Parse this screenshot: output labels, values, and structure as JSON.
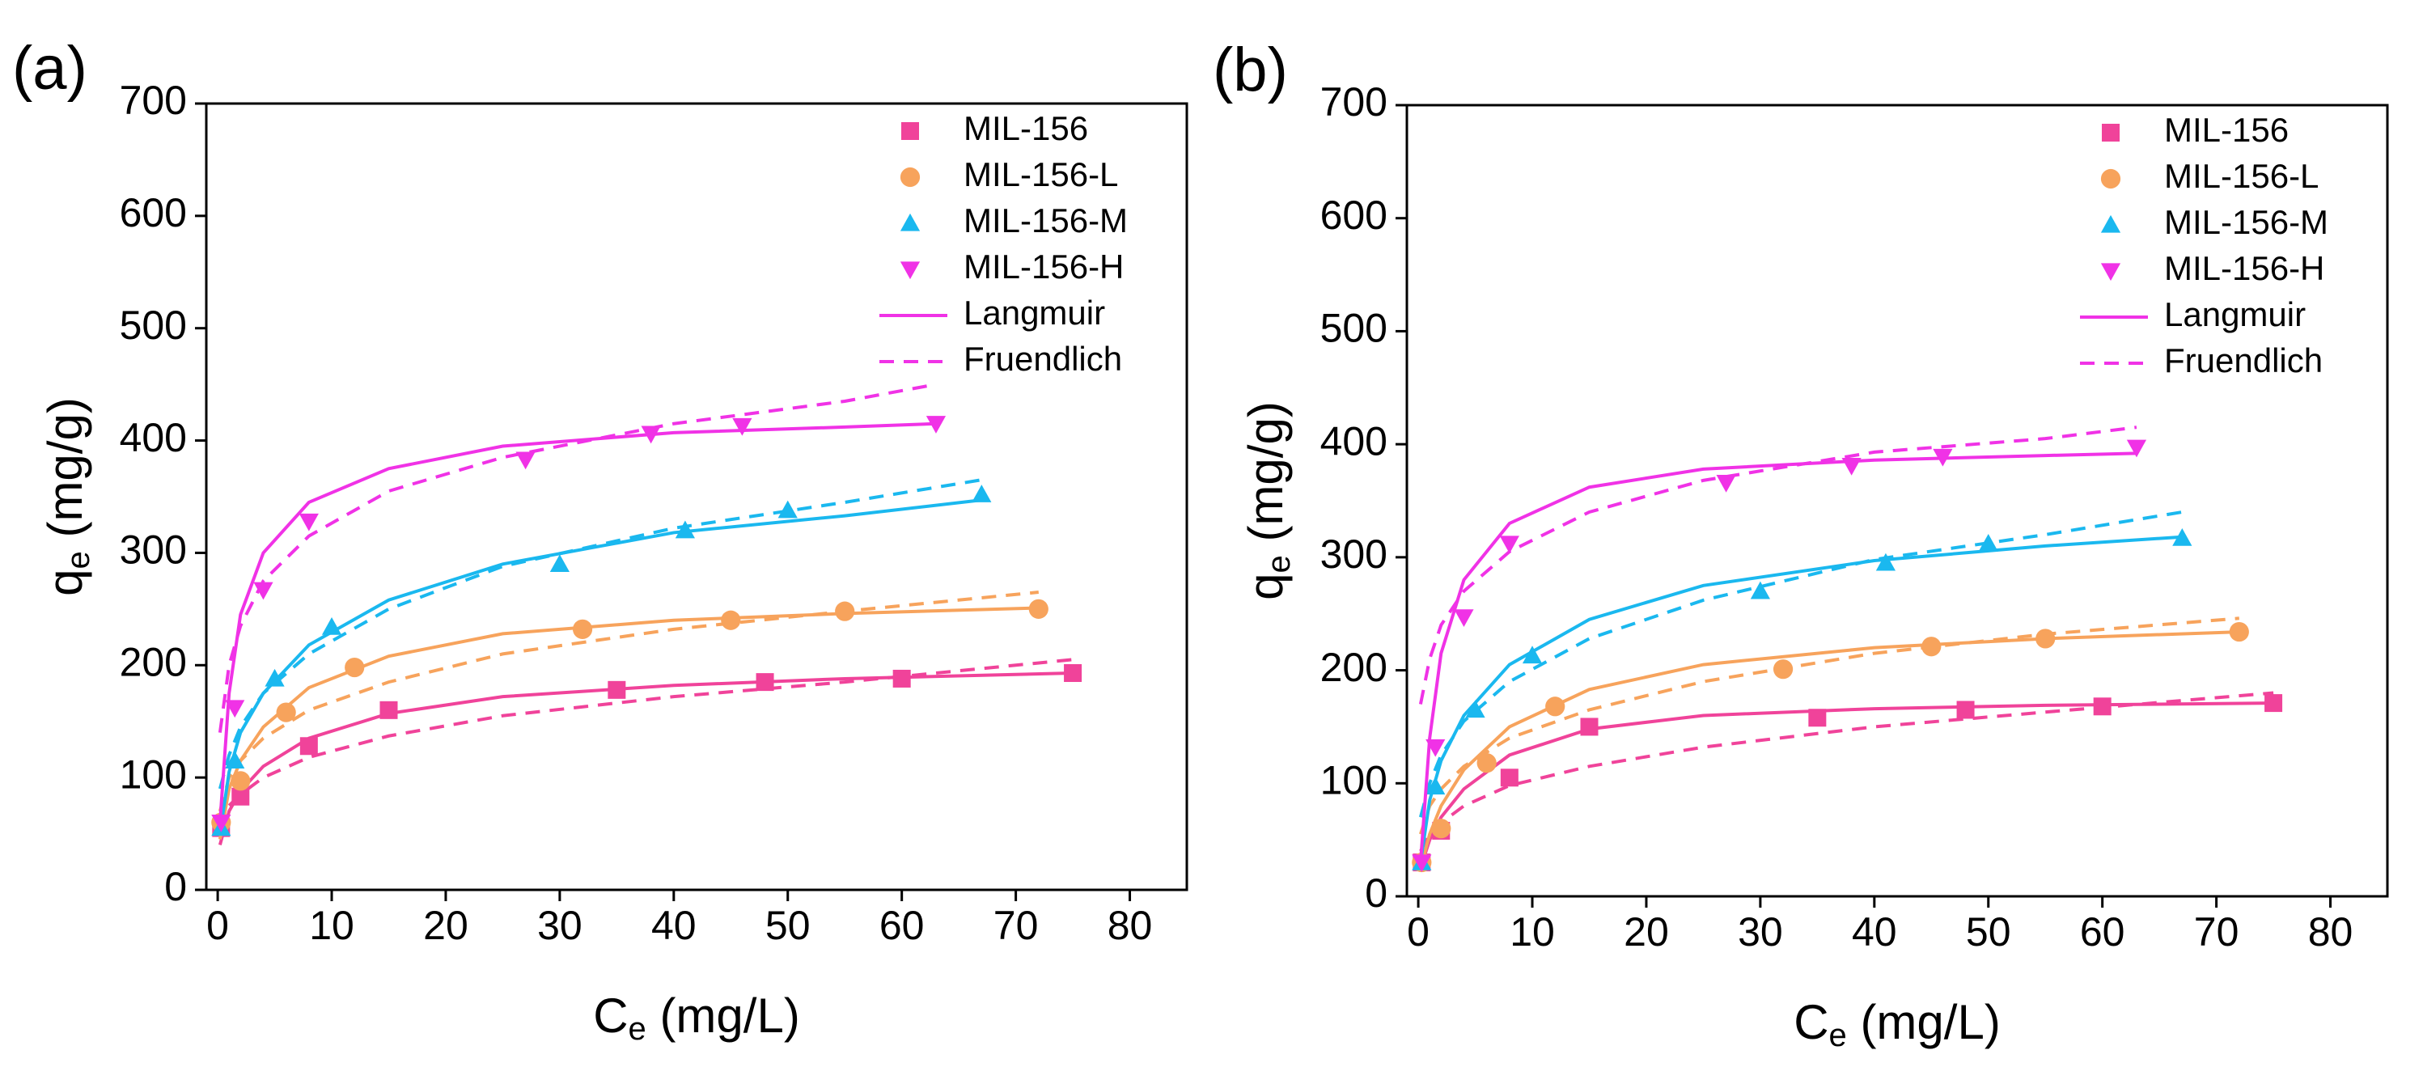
{
  "chart_data": [
    {
      "type": "scatter",
      "panel_label": "(a)",
      "x_label": {
        "main": "C",
        "sub": "e",
        "rest": " (mg/L)"
      },
      "y_label": {
        "main": "q",
        "sub": "e",
        "rest": " (mg/g)"
      },
      "xlim": [
        -1,
        85
      ],
      "ylim": [
        0,
        700
      ],
      "xticks": [
        0,
        10,
        20,
        30,
        40,
        50,
        60,
        70,
        80
      ],
      "yticks": [
        0,
        100,
        200,
        300,
        400,
        500,
        600,
        700
      ],
      "series": [
        {
          "name": "MIL-156",
          "color": "#f0439a",
          "marker": "square",
          "x": [
            0.3,
            2,
            8,
            15,
            35,
            48,
            60,
            75
          ],
          "values": [
            55,
            83,
            128,
            160,
            178,
            185,
            188,
            193
          ],
          "langmuir": {
            "x": [
              0.2,
              1,
              2,
              4,
              8,
              15,
              25,
              40,
              55,
              75
            ],
            "values": [
              40,
              70,
              88,
              110,
              135,
              157,
              172,
              182,
              188,
              193
            ]
          },
          "freundlich": {
            "x": [
              0.2,
              1,
              2,
              4,
              8,
              15,
              25,
              40,
              55,
              75
            ],
            "values": [
              55,
              75,
              85,
              100,
              118,
              137,
              155,
              172,
              185,
              205
            ]
          }
        },
        {
          "name": "MIL-156-L",
          "color": "#f7a35c",
          "marker": "circle",
          "x": [
            0.3,
            2,
            6,
            12,
            32,
            45,
            55,
            72
          ],
          "values": [
            60,
            97,
            158,
            198,
            232,
            240,
            248,
            250
          ],
          "langmuir": {
            "x": [
              0.2,
              1,
              2,
              4,
              8,
              15,
              25,
              40,
              55,
              72
            ],
            "values": [
              45,
              90,
              115,
              145,
              180,
              208,
              228,
              240,
              246,
              251
            ]
          },
          "freundlich": {
            "x": [
              0.2,
              1,
              2,
              4,
              8,
              15,
              25,
              40,
              55,
              72
            ],
            "values": [
              70,
              100,
              115,
              135,
              160,
              185,
              210,
              232,
              248,
              265
            ]
          }
        },
        {
          "name": "MIL-156-M",
          "color": "#1ab8ef",
          "marker": "triangle-up",
          "x": [
            0.3,
            1.5,
            5,
            10,
            30,
            41,
            50,
            67
          ],
          "values": [
            55,
            115,
            188,
            234,
            290,
            320,
            338,
            352
          ],
          "langmuir": {
            "x": [
              0.2,
              1,
              2,
              4,
              8,
              15,
              25,
              40,
              55,
              67
            ],
            "values": [
              50,
              105,
              140,
              175,
              218,
              258,
              290,
              318,
              333,
              347
            ]
          },
          "freundlich": {
            "x": [
              0.2,
              1,
              2,
              4,
              8,
              15,
              25,
              40,
              55,
              67
            ],
            "values": [
              90,
              120,
              145,
              175,
              210,
              250,
              288,
              322,
              345,
              365
            ]
          }
        },
        {
          "name": "MIL-156-H",
          "color": "#f032e6",
          "marker": "triangle-down",
          "x": [
            0.3,
            1.5,
            4,
            8,
            27,
            38,
            46,
            63
          ],
          "values": [
            60,
            162,
            267,
            328,
            383,
            406,
            413,
            415
          ],
          "langmuir": {
            "x": [
              0.2,
              1,
              2,
              4,
              8,
              15,
              25,
              40,
              55,
              63
            ],
            "values": [
              60,
              175,
              245,
              300,
              345,
              375,
              395,
              407,
              412,
              415
            ]
          },
          "freundlich": {
            "x": [
              0.2,
              1,
              2,
              4,
              8,
              15,
              25,
              40,
              55,
              63
            ],
            "values": [
              140,
              200,
              235,
              275,
              315,
              355,
              385,
              415,
              435,
              450
            ]
          }
        }
      ],
      "fit_legend": [
        {
          "name": "Langmuir",
          "color": "#f032e6",
          "dashed": false
        },
        {
          "name": "Fruendlich",
          "color": "#f032e6",
          "dashed": true
        }
      ]
    },
    {
      "type": "scatter",
      "panel_label": "(b)",
      "x_label": {
        "main": "C",
        "sub": "e",
        "rest": " (mg/L)"
      },
      "y_label": {
        "main": "q",
        "sub": "e",
        "rest": " (mg/g)"
      },
      "xlim": [
        -1,
        85
      ],
      "ylim": [
        0,
        700
      ],
      "xticks": [
        0,
        10,
        20,
        30,
        40,
        50,
        60,
        70,
        80
      ],
      "yticks": [
        0,
        100,
        200,
        300,
        400,
        500,
        600,
        700
      ],
      "series": [
        {
          "name": "MIL-156",
          "color": "#f0439a",
          "marker": "square",
          "x": [
            0.3,
            2,
            8,
            15,
            35,
            48,
            60,
            75
          ],
          "values": [
            30,
            58,
            105,
            150,
            158,
            165,
            168,
            171
          ],
          "langmuir": {
            "x": [
              0.2,
              1,
              2,
              4,
              8,
              15,
              25,
              40,
              55,
              75
            ],
            "values": [
              25,
              50,
              70,
              95,
              125,
              148,
              160,
              166,
              169,
              171
            ]
          },
          "freundlich": {
            "x": [
              0.2,
              1,
              2,
              4,
              8,
              15,
              25,
              40,
              55,
              75
            ],
            "values": [
              40,
              55,
              65,
              80,
              98,
              115,
              132,
              150,
              163,
              180
            ]
          }
        },
        {
          "name": "MIL-156-L",
          "color": "#f7a35c",
          "marker": "circle",
          "x": [
            0.3,
            2,
            6,
            12,
            32,
            45,
            55,
            72
          ],
          "values": [
            30,
            60,
            118,
            168,
            201,
            221,
            228,
            234
          ],
          "langmuir": {
            "x": [
              0.2,
              1,
              2,
              4,
              8,
              15,
              25,
              40,
              55,
              72
            ],
            "values": [
              25,
              55,
              80,
              112,
              150,
              183,
              205,
              220,
              228,
              234
            ]
          },
          "freundlich": {
            "x": [
              0.2,
              1,
              2,
              4,
              8,
              15,
              25,
              40,
              55,
              72
            ],
            "values": [
              55,
              80,
              95,
              115,
              140,
              165,
              190,
              215,
              232,
              246
            ]
          }
        },
        {
          "name": "MIL-156-M",
          "color": "#1ab8ef",
          "marker": "triangle-up",
          "x": [
            0.3,
            1.5,
            5,
            10,
            30,
            41,
            50,
            67
          ],
          "values": [
            30,
            97,
            165,
            213,
            270,
            295,
            312,
            317
          ],
          "langmuir": {
            "x": [
              0.2,
              1,
              2,
              4,
              8,
              15,
              25,
              40,
              55,
              67
            ],
            "values": [
              30,
              85,
              120,
              160,
              205,
              245,
              275,
              297,
              310,
              318
            ]
          },
          "freundlich": {
            "x": [
              0.2,
              1,
              2,
              4,
              8,
              15,
              25,
              40,
              55,
              67
            ],
            "values": [
              70,
              100,
              125,
              155,
              190,
              228,
              262,
              298,
              320,
              340
            ]
          }
        },
        {
          "name": "MIL-156-H",
          "color": "#f032e6",
          "marker": "triangle-down",
          "x": [
            0.3,
            1.5,
            4,
            8,
            27,
            38,
            46,
            63
          ],
          "values": [
            30,
            132,
            247,
            312,
            366,
            381,
            389,
            397
          ],
          "langmuir": {
            "x": [
              0.2,
              1,
              2,
              4,
              8,
              15,
              25,
              40,
              55,
              63
            ],
            "values": [
              30,
              140,
              215,
              280,
              330,
              362,
              378,
              386,
              390,
              392
            ]
          },
          "freundlich": {
            "x": [
              0.2,
              1,
              2,
              4,
              8,
              15,
              25,
              40,
              55,
              63
            ],
            "values": [
              170,
              210,
              240,
              270,
              305,
              340,
              368,
              393,
              405,
              415
            ]
          }
        }
      ],
      "fit_legend": [
        {
          "name": "Langmuir",
          "color": "#f032e6",
          "dashed": false
        },
        {
          "name": "Fruendlich",
          "color": "#f032e6",
          "dashed": true
        }
      ]
    }
  ]
}
